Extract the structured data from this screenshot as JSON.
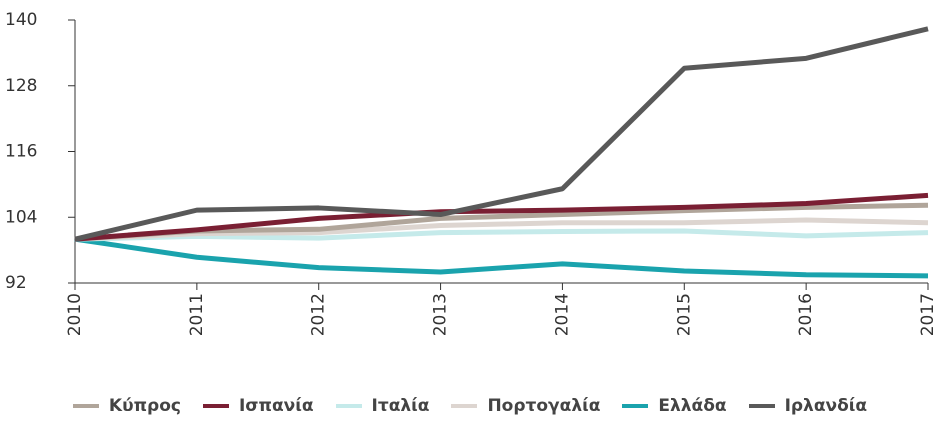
{
  "chart_data": {
    "type": "line",
    "categories": [
      "2010",
      "2011",
      "2012",
      "2013",
      "2014",
      "2015",
      "2016",
      "2017"
    ],
    "series": [
      {
        "name": "Κύπρος",
        "color": "#b0a59a",
        "values": [
          100,
          101.5,
          101.8,
          103.8,
          104.5,
          105.2,
          105.8,
          106.2
        ]
      },
      {
        "name": "Ισπανία",
        "color": "#7a1f33",
        "values": [
          100,
          101.7,
          103.8,
          105,
          105.3,
          105.8,
          106.5,
          108
        ]
      },
      {
        "name": "Ιταλία",
        "color": "#c5eaea",
        "values": [
          100,
          100.5,
          100.2,
          101.2,
          101.4,
          101.5,
          100.6,
          101.2
        ]
      },
      {
        "name": "Πορτογαλία",
        "color": "#ddd5d0",
        "values": [
          100,
          101,
          101.2,
          102.5,
          103,
          103,
          103.5,
          103
        ]
      },
      {
        "name": "Ελλάδα",
        "color": "#1aa3ad",
        "values": [
          100,
          96.7,
          94.8,
          94,
          95.5,
          94.2,
          93.5,
          93.3
        ]
      },
      {
        "name": "Ιρλανδία",
        "color": "#595959",
        "values": [
          100,
          105.3,
          105.7,
          104.5,
          109.2,
          131.2,
          133,
          138.4
        ]
      }
    ],
    "ylim": [
      92,
      140
    ],
    "yticks": [
      92,
      104,
      116,
      128,
      140
    ]
  }
}
